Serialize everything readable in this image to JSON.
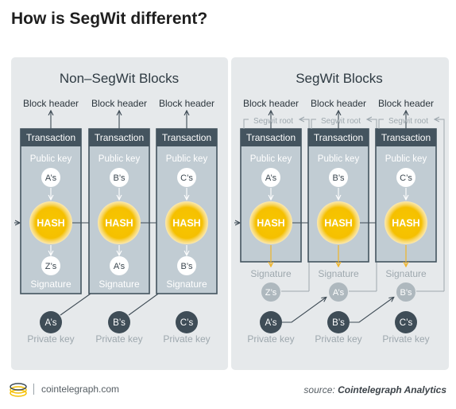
{
  "title": "How is SegWit different?",
  "panels": [
    {
      "heading": "Non–SegWit Blocks",
      "segwit": false,
      "columns": [
        {
          "block_header": "Block header",
          "transaction": "Transaction",
          "public_key": "Public key",
          "pubkey_badge": "A’s",
          "hash": "HASH",
          "signature_badge": "Z’s",
          "signature": "Signature",
          "private_badge": "A’s",
          "private_key": "Private key"
        },
        {
          "block_header": "Block header",
          "transaction": "Transaction",
          "public_key": "Public key",
          "pubkey_badge": "B’s",
          "hash": "HASH",
          "signature_badge": "A’s",
          "signature": "Signature",
          "private_badge": "B’s",
          "private_key": "Private key"
        },
        {
          "block_header": "Block header",
          "transaction": "Transaction",
          "public_key": "Public key",
          "pubkey_badge": "C’s",
          "hash": "HASH",
          "signature_badge": "B’s",
          "signature": "Signature",
          "private_badge": "C’s",
          "private_key": "Private key"
        }
      ]
    },
    {
      "heading": "SegWit Blocks",
      "segwit": true,
      "columns": [
        {
          "block_header": "Block header",
          "segwit_root": "Segwit root",
          "transaction": "Transaction",
          "public_key": "Public key",
          "pubkey_badge": "A’s",
          "hash": "HASH",
          "signature": "Signature",
          "signature_badge": "Z’s",
          "private_badge": "A’s",
          "private_key": "Private key"
        },
        {
          "block_header": "Block header",
          "segwit_root": "Segwit root",
          "transaction": "Transaction",
          "public_key": "Public key",
          "pubkey_badge": "B’s",
          "hash": "HASH",
          "signature": "Signature",
          "signature_badge": "A’s",
          "private_badge": "B’s",
          "private_key": "Private key"
        },
        {
          "block_header": "Block header",
          "segwit_root": "Segwit root",
          "transaction": "Transaction",
          "public_key": "Public key",
          "pubkey_badge": "C’s",
          "hash": "HASH",
          "signature": "Signature",
          "signature_badge": "B’s",
          "private_badge": "C’s",
          "private_key": "Private key"
        }
      ]
    }
  ],
  "footer": {
    "site": "cointelegraph.com",
    "source_prefix": "source: ",
    "source_name": "Cointelegraph Analytics"
  },
  "colors": {
    "panel_bg": "#e6e9eb",
    "column_fill": "#c1ccd3",
    "column_header": "#44545f",
    "hash": "#f5c200",
    "hash_glow": "#fbe3a0",
    "dark_circle": "#3f4d57",
    "line": "#3d4a54",
    "muted_text": "#9ea8ae",
    "segwit_arrow": "#f0b429"
  }
}
